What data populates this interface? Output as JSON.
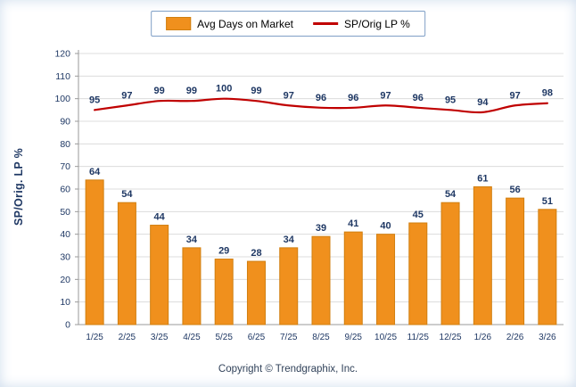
{
  "legend": {
    "bar_label": "Avg Days on Market",
    "line_label": "SP/Orig LP %"
  },
  "footer": {
    "text": "Copyright © Trendgraphix, Inc."
  },
  "chart_data": {
    "type": "bar",
    "categories": [
      "1/25",
      "2/25",
      "3/25",
      "4/25",
      "5/25",
      "6/25",
      "7/25",
      "8/25",
      "9/25",
      "10/25",
      "11/25",
      "12/25",
      "1/26",
      "2/26",
      "3/26"
    ],
    "series": [
      {
        "name": "Avg Days on Market",
        "type": "bar",
        "values": [
          64,
          54,
          44,
          34,
          29,
          28,
          34,
          39,
          41,
          40,
          45,
          54,
          61,
          56,
          51
        ],
        "color": "#F0901D",
        "border_color": "#D17F10"
      },
      {
        "name": "SP/Orig LP %",
        "type": "line",
        "values": [
          95,
          97,
          99,
          99,
          100,
          99,
          97,
          96,
          96,
          97,
          96,
          95,
          94,
          97,
          98
        ],
        "color": "#C00000"
      }
    ],
    "title": "",
    "xlabel": "",
    "ylabel": "SP/Orig. LP %",
    "ylim": [
      0,
      120
    ],
    "ytick_step": 10,
    "grid": true,
    "legend_position": "top",
    "label_color": "#1F3864",
    "grid_color": "#DCDCDC",
    "axis_color": "#9A9A9A"
  }
}
